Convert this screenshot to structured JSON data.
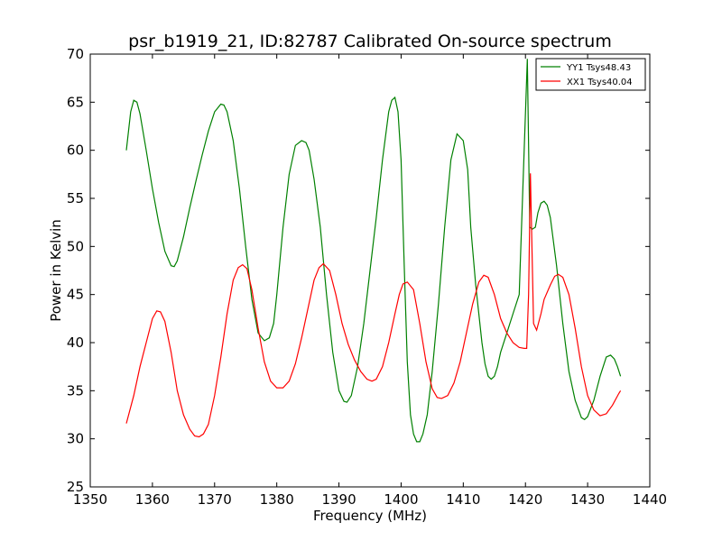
{
  "chart_data": {
    "type": "line",
    "title": "psr_b1919_21, ID:82787 Calibrated On-source spectrum",
    "xlabel": "Frequency (MHz)",
    "ylabel": "Power in Kelvin",
    "xlim": [
      1350,
      1440
    ],
    "ylim": [
      25,
      70
    ],
    "xticks": [
      1350,
      1360,
      1370,
      1380,
      1390,
      1400,
      1410,
      1420,
      1430,
      1440
    ],
    "yticks": [
      25,
      30,
      35,
      40,
      45,
      50,
      55,
      60,
      65,
      70
    ],
    "grid": false,
    "legend_position": "top-right",
    "series": [
      {
        "name": "YY1 Tsys48.43",
        "color": "#008000",
        "x": [
          1355.8,
          1356.5,
          1357,
          1357.5,
          1358,
          1359,
          1360,
          1361,
          1362,
          1363,
          1363.5,
          1364,
          1365,
          1366,
          1367,
          1368,
          1369,
          1370,
          1371,
          1371.5,
          1372,
          1373,
          1374,
          1375,
          1376,
          1377,
          1378,
          1378.8,
          1379.5,
          1380,
          1381,
          1382,
          1383,
          1384,
          1384.7,
          1385.2,
          1386,
          1387,
          1388,
          1389,
          1390,
          1390.8,
          1391.3,
          1392,
          1393,
          1394,
          1395,
          1396,
          1397,
          1398,
          1398.5,
          1399,
          1399.5,
          1400,
          1400.5,
          1401,
          1401.5,
          1402,
          1402.5,
          1403,
          1403.5,
          1404.2,
          1405,
          1406,
          1407,
          1408,
          1409,
          1410,
          1410.7,
          1411.2,
          1412,
          1413,
          1413.5,
          1414,
          1414.5,
          1415,
          1415.5,
          1416,
          1417,
          1418,
          1419,
          1419.8,
          1420.3,
          1420.7,
          1421.1,
          1421.6,
          1422,
          1422.5,
          1423,
          1423.5,
          1424,
          1425,
          1426,
          1427,
          1428,
          1429,
          1429.5,
          1430,
          1431,
          1432,
          1433,
          1433.7,
          1434.3,
          1434.8,
          1435.3
        ],
        "y": [
          60,
          64,
          65.2,
          65,
          63.8,
          60,
          56,
          52.5,
          49.5,
          48,
          47.9,
          48.5,
          51,
          54,
          56.8,
          59.5,
          62,
          64,
          64.8,
          64.7,
          64,
          61,
          56,
          50,
          44.5,
          41,
          40.2,
          40.5,
          42,
          45,
          52,
          57.5,
          60.5,
          61,
          60.8,
          60,
          57,
          52,
          45,
          39,
          35,
          33.9,
          33.8,
          34.5,
          37.5,
          42,
          47.5,
          53,
          59,
          64,
          65.2,
          65.5,
          64,
          59,
          48,
          38,
          32.5,
          30.5,
          29.7,
          29.7,
          30.5,
          32.5,
          37,
          44,
          52,
          59,
          61.7,
          61,
          58,
          52,
          46,
          40,
          37.8,
          36.5,
          36.2,
          36.5,
          37.5,
          39,
          41,
          43,
          45,
          60,
          69.5,
          52,
          51.8,
          52,
          53.5,
          54.5,
          54.7,
          54.3,
          53,
          48,
          42,
          37,
          34,
          32.2,
          32,
          32.3,
          34,
          36.5,
          38.5,
          38.7,
          38.3,
          37.5,
          36.5
        ]
      },
      {
        "name": "XX1 Tsys40.04",
        "color": "#ff0000",
        "x": [
          1355.8,
          1357,
          1358,
          1359,
          1360,
          1360.7,
          1361.3,
          1362,
          1363,
          1364,
          1365,
          1366,
          1366.8,
          1367.5,
          1368.2,
          1369,
          1370,
          1371,
          1372,
          1373,
          1373.8,
          1374.5,
          1375.2,
          1376,
          1377,
          1378,
          1379,
          1380,
          1381,
          1382,
          1383,
          1384,
          1385,
          1386,
          1386.8,
          1387.5,
          1388.5,
          1389.5,
          1390.5,
          1391.5,
          1392.5,
          1393.5,
          1394.5,
          1395.3,
          1396,
          1397,
          1398,
          1399,
          1399.7,
          1400.3,
          1401,
          1402,
          1403,
          1404,
          1405,
          1405.8,
          1406.5,
          1407.5,
          1408.5,
          1409.5,
          1410.5,
          1411.5,
          1412.5,
          1413.3,
          1414,
          1415,
          1416,
          1417,
          1418,
          1419,
          1419.8,
          1420.2,
          1420.5,
          1420.8,
          1421.3,
          1421.8,
          1422.5,
          1423,
          1424,
          1424.7,
          1425.3,
          1426,
          1427,
          1428,
          1429,
          1430,
          1431,
          1432,
          1433,
          1434,
          1435,
          1435.3
        ],
        "y": [
          31.6,
          34.5,
          37.5,
          40,
          42.5,
          43.3,
          43.2,
          42.2,
          39,
          35,
          32.5,
          31,
          30.3,
          30.2,
          30.5,
          31.5,
          34.5,
          38.5,
          43,
          46.5,
          47.8,
          48.1,
          47.7,
          45.5,
          41.5,
          38,
          36,
          35.3,
          35.3,
          36,
          37.8,
          40.5,
          43.5,
          46.5,
          47.8,
          48.2,
          47.5,
          45,
          42,
          39.8,
          38.2,
          37,
          36.2,
          36,
          36.2,
          37.5,
          40,
          43,
          45,
          46.1,
          46.3,
          45.5,
          42,
          38,
          35.2,
          34.3,
          34.2,
          34.5,
          35.8,
          38,
          41,
          44,
          46.3,
          47,
          46.8,
          45,
          42.5,
          41,
          40,
          39.5,
          39.4,
          39.4,
          45,
          57.6,
          42,
          41.3,
          43,
          44.5,
          46,
          46.9,
          47.1,
          46.8,
          45,
          41.5,
          37.5,
          34.5,
          33,
          32.4,
          32.6,
          33.5,
          34.7,
          35
        ]
      }
    ]
  }
}
